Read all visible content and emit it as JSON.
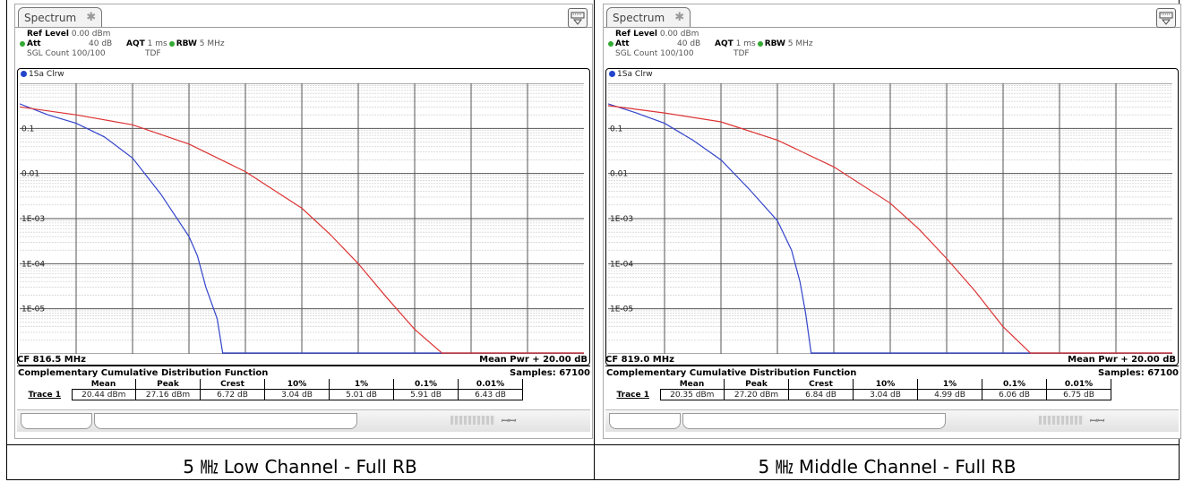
{
  "panels": [
    {
      "tab_label": "Spectrum",
      "ref_level_label": "Ref Level",
      "ref_level_value": "0.00 dBm",
      "att_label": "Att",
      "att_value": "40 dB",
      "aqt_label": "AQT",
      "aqt_value": "1 ms",
      "rbw_label": "RBW",
      "rbw_value": "5 MHz",
      "sgl_count": "SGL Count 100/100",
      "tdf": "TDF",
      "trace_label": "1Sa Clrw",
      "cf": "CF 816.5 MHz",
      "mean_pwr": "Mean Pwr + 20.00 dB",
      "ccdf_title": "Complementary Cumulative Distribution Function",
      "samples": "Samples: 67100",
      "table_headers": [
        "Mean",
        "Peak",
        "Crest",
        "10%",
        "1%",
        "0.1%",
        "0.01%"
      ],
      "row_label": "Trace 1",
      "row_values": [
        "20.44 dBm",
        "27.16 dBm",
        "6.72 dB",
        "3.04 dB",
        "5.01 dB",
        "5.91 dB",
        "6.43 dB"
      ],
      "caption": "5 ㎒ Low Channel - Full RB"
    },
    {
      "tab_label": "Spectrum",
      "ref_level_label": "Ref Level",
      "ref_level_value": "0.00 dBm",
      "att_label": "Att",
      "att_value": "40 dB",
      "aqt_label": "AQT",
      "aqt_value": "1 ms",
      "rbw_label": "RBW",
      "rbw_value": "5 MHz",
      "sgl_count": "SGL Count 100/100",
      "tdf": "TDF",
      "trace_label": "1Sa Clrw",
      "cf": "CF 819.0 MHz",
      "mean_pwr": "Mean Pwr + 20.00 dB",
      "ccdf_title": "Complementary Cumulative Distribution Function",
      "samples": "Samples: 67100",
      "table_headers": [
        "Mean",
        "Peak",
        "Crest",
        "10%",
        "1%",
        "0.1%",
        "0.01%"
      ],
      "row_label": "Trace 1",
      "row_values": [
        "20.35 dBm",
        "27.20 dBm",
        "6.84 dB",
        "3.04 dB",
        "4.99 dB",
        "6.06 dB",
        "6.75 dB"
      ],
      "caption": "5 ㎒ Middle Channel - Full RB"
    }
  ],
  "chart_data": [
    {
      "type": "line",
      "y_scale": "log",
      "ylim": [
        1e-06,
        1
      ],
      "y_tick_labels": [
        "0.1",
        "0.01",
        "1E-03",
        "1E-04",
        "1E-05"
      ],
      "y_tick_values": [
        0.1,
        0.01,
        0.001,
        0.0001,
        1e-05
      ],
      "xlabel": "",
      "ylabel": "",
      "xlim": [
        0,
        20
      ],
      "grid": true,
      "series": [
        {
          "color": "#3344cc",
          "x": [
            0,
            1,
            2,
            3,
            4,
            5,
            6,
            6.3,
            6.6,
            7,
            7.2
          ],
          "y": [
            0.35,
            0.2,
            0.13,
            0.065,
            0.022,
            0.0035,
            0.0004,
            0.00015,
            3e-05,
            6e-06,
            1e-06
          ]
        },
        {
          "color": "#dd3333",
          "x": [
            0,
            2,
            4,
            6,
            8,
            10,
            11,
            12,
            13,
            14,
            15
          ],
          "y": [
            0.3,
            0.2,
            0.12,
            0.045,
            0.011,
            0.0017,
            0.00045,
            0.0001,
            1.8e-05,
            3.5e-06,
            1e-06
          ]
        }
      ]
    },
    {
      "type": "line",
      "y_scale": "log",
      "ylim": [
        1e-06,
        1
      ],
      "y_tick_labels": [
        "0.1",
        "0.01",
        "1E-03",
        "1E-04",
        "1E-05"
      ],
      "y_tick_values": [
        0.1,
        0.01,
        0.001,
        0.0001,
        1e-05
      ],
      "xlabel": "",
      "ylabel": "",
      "xlim": [
        0,
        20
      ],
      "grid": true,
      "series": [
        {
          "color": "#3344cc",
          "x": [
            0,
            1,
            2,
            3,
            4,
            5,
            6,
            6.5,
            6.8,
            7,
            7.2
          ],
          "y": [
            0.35,
            0.22,
            0.13,
            0.055,
            0.02,
            0.0045,
            0.0009,
            0.0002,
            4e-05,
            8e-06,
            1e-06
          ]
        },
        {
          "color": "#dd3333",
          "x": [
            0,
            2,
            4,
            6,
            8,
            10,
            11,
            12,
            13,
            14,
            15
          ],
          "y": [
            0.32,
            0.22,
            0.14,
            0.055,
            0.014,
            0.0022,
            0.0006,
            0.00013,
            2.5e-05,
            4e-06,
            1e-06
          ]
        }
      ]
    }
  ]
}
